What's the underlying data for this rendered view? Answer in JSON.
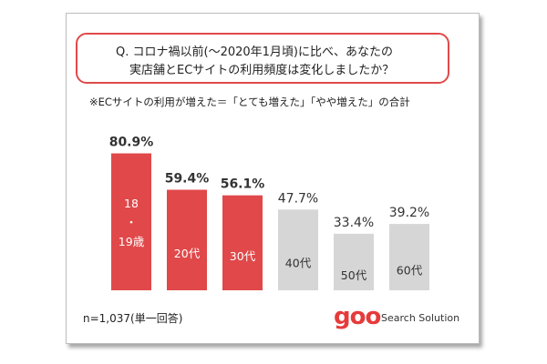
{
  "question": {
    "line1": "Q. コロナ禍以前(～2020年1月頃)に比べ、あなたの",
    "line2": "実店舗とECサイトの利用頻度は変化しましたか？"
  },
  "note": "※ECサイトの利用が増えた＝「とても増えた」「やや増えた」の合計",
  "footer_n": "n=1,037(単一回答)",
  "brand": {
    "logo": "goo",
    "subtitle": "Search Solution"
  },
  "colors": {
    "highlight": "#e0484a",
    "normal": "#d6d6d6",
    "frame": "#e04a4a"
  },
  "chart_data": {
    "type": "bar",
    "categories": [
      "18・19歳",
      "20代",
      "30代",
      "40代",
      "50代",
      "60代"
    ],
    "category_lines": [
      [
        "18",
        "・",
        "19歳"
      ],
      [
        "20代"
      ],
      [
        "30代"
      ],
      [
        "40代"
      ],
      [
        "50代"
      ],
      [
        "60代"
      ]
    ],
    "values": [
      80.9,
      59.4,
      56.1,
      47.7,
      33.4,
      39.2
    ],
    "value_labels": [
      "80.9%",
      "59.4%",
      "56.1%",
      "47.7%",
      "33.4%",
      "39.2%"
    ],
    "highlighted": [
      true,
      true,
      true,
      false,
      false,
      false
    ],
    "ylim": [
      0,
      100
    ],
    "unit": "%"
  }
}
